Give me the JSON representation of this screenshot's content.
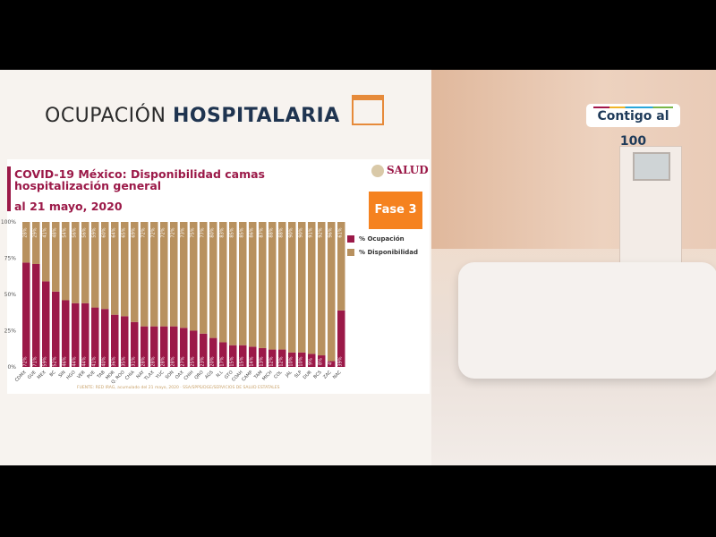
{
  "slide": {
    "title_light": "OCUPACIÓN",
    "title_bold": "HOSPITALARIA",
    "badge": "Fase 3",
    "ministry": "SALUD",
    "broadcast_logo": "Contigo al 100"
  },
  "chart_data": {
    "type": "bar",
    "stacked": true,
    "title": "COVID-19 México: Disponibilidad camas hospitalización general",
    "subtitle": "al 21 mayo, 2020",
    "source": "FUENTE: RED IRAG, acumulado del 21 mayo, 2020 · SSA/SPPS/DGE/SERVICIOS DE SALUD ESTATALES",
    "ylim": [
      0,
      100
    ],
    "yticks": [
      "0%",
      "25%",
      "50%",
      "75%",
      "100%"
    ],
    "legend_position": "right",
    "categories": [
      "CDMX",
      "GUE",
      "MEX",
      "BC",
      "SIN",
      "HGO",
      "VER",
      "PUE",
      "TAB",
      "MOR",
      "Q. ROO",
      "CHIA",
      "NAY",
      "TLAX",
      "YUC",
      "SON",
      "OAX",
      "CHIH",
      "QRO",
      "AGS",
      "N.L",
      "GTO",
      "COAH",
      "CAMP",
      "TAM",
      "MICH",
      "COL",
      "JAL",
      "SLP",
      "DUR",
      "BCS",
      "ZAC",
      "NAC"
    ],
    "series": [
      {
        "name": "% Ocupación",
        "color": "#9b1948",
        "values": [
          72,
          71,
          59,
          52,
          46,
          44,
          44,
          41,
          40,
          36,
          35,
          31,
          28,
          28,
          28,
          28,
          27,
          25,
          23,
          20,
          17,
          15,
          15,
          14,
          13,
          12,
          12,
          10,
          10,
          9,
          8,
          4,
          39
        ]
      },
      {
        "name": "% Disponibilidad",
        "color": "#b8915f",
        "values": [
          28,
          29,
          41,
          48,
          54,
          56,
          56,
          59,
          60,
          64,
          65,
          69,
          72,
          72,
          72,
          72,
          73,
          75,
          77,
          80,
          83,
          85,
          85,
          86,
          87,
          88,
          88,
          90,
          90,
          91,
          92,
          96,
          61
        ]
      }
    ]
  }
}
